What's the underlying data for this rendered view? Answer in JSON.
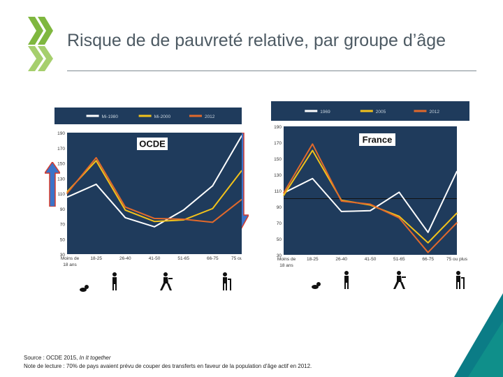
{
  "slide": {
    "title": "Risque de de pauvreté relative, par groupe d’âge",
    "source_label": "Source : OCDE 2015, ",
    "source_italic": "In It together",
    "note": "Note de lecture : 70% de pays avaient prévu de couper des transferts en faveur de la population d’âge actif en 2012."
  },
  "colors": {
    "header_bg": "#1f3b5c",
    "plot_bg": "#1f3b5c",
    "white_series": "#ffffff",
    "yellow_series": "#f2c21b",
    "orange_series": "#e1692b",
    "logo_green": "#7fb73f",
    "corner_teal": "#0b7c86",
    "corner_green": "#7fb73f",
    "arrow_blue": "#3b73c8",
    "arrow_red": "#d33b2e"
  },
  "icons": [
    "baby-icon",
    "young-person-icon",
    "adult-walking-icon",
    "worker-icon",
    "elderly-cane-icon"
  ],
  "chart_data": [
    {
      "type": "line",
      "title": "OCDE",
      "categories": [
        "Moins de 18 ans",
        "18-25",
        "26-40",
        "41-50",
        "51-65",
        "66-75",
        "75 ou plus"
      ],
      "y_ticks": [
        "190",
        "170",
        "150",
        "130",
        "110",
        "90",
        "70",
        "50",
        "30"
      ],
      "ylim": [
        30,
        190
      ],
      "series": [
        {
          "name": "Mi-1980",
          "color_key": "white_series",
          "values": [
            105,
            122,
            78,
            66,
            88,
            120,
            186
          ]
        },
        {
          "name": "Mi-2000",
          "color_key": "yellow_series",
          "values": [
            112,
            153,
            88,
            73,
            75,
            90,
            140
          ]
        },
        {
          "name": "2012",
          "color_key": "orange_series",
          "values": [
            110,
            157,
            92,
            77,
            76,
            72,
            102
          ]
        }
      ]
    },
    {
      "type": "line",
      "title": "France",
      "categories": [
        "Moins de 18 ans",
        "18-25",
        "26-40",
        "41-50",
        "51-65",
        "66-75",
        "75 ou plus"
      ],
      "y_ticks": [
        "190",
        "170",
        "150",
        "130",
        "110",
        "90",
        "70",
        "50",
        "30"
      ],
      "ylim": [
        30,
        190
      ],
      "reference_line": 100,
      "series": [
        {
          "name": "1969",
          "color_key": "white_series",
          "values": [
            107,
            125,
            84,
            85,
            108,
            58,
            134
          ]
        },
        {
          "name": "2005",
          "color_key": "yellow_series",
          "values": [
            104,
            160,
            98,
            92,
            78,
            45,
            82
          ]
        },
        {
          "name": "2012",
          "color_key": "orange_series",
          "values": [
            107,
            168,
            97,
            93,
            76,
            33,
            70
          ]
        }
      ]
    }
  ]
}
